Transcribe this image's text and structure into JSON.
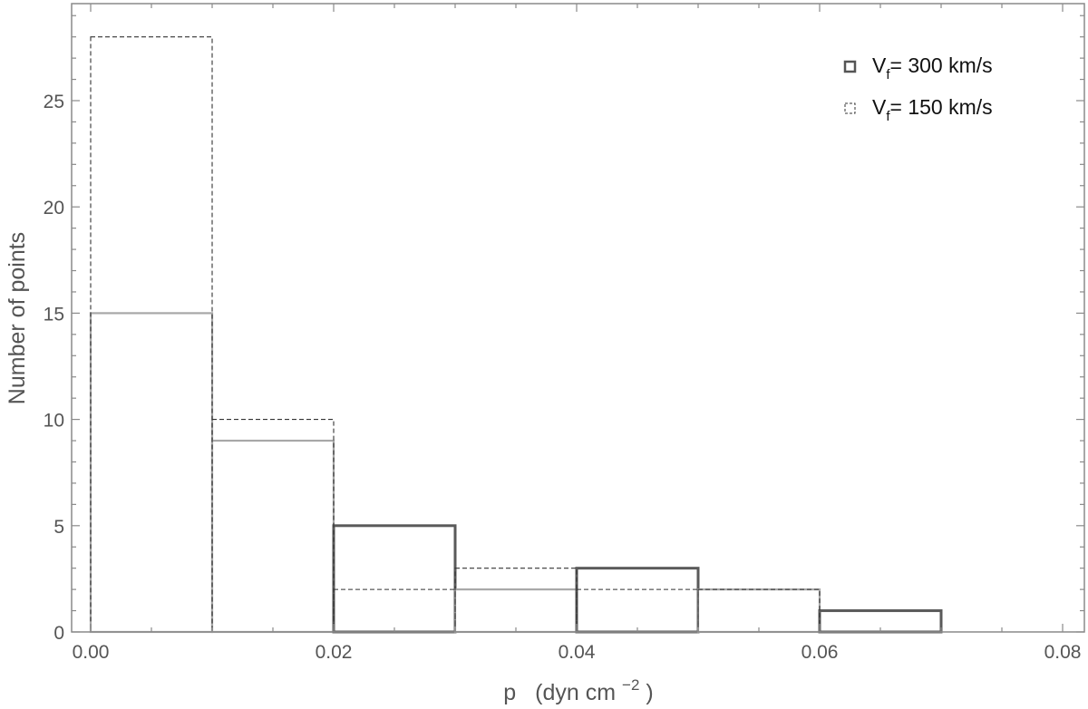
{
  "chart_data": {
    "type": "bar",
    "subtype": "histogram",
    "xlabel": {
      "main": "p",
      "unit_prefix": "(dyn cm",
      "unit_exp": "−2",
      "unit_suffix": ")"
    },
    "ylabel": "Number  of  points",
    "xlim": [
      0,
      0.08
    ],
    "ylim": [
      0,
      29
    ],
    "x_ticks": [
      "0.00",
      "0.02",
      "0.04",
      "0.06",
      "0.08"
    ],
    "y_ticks": [
      "0",
      "5",
      "10",
      "15",
      "20",
      "25"
    ],
    "bin_width": 0.01,
    "legend_position": "top-right",
    "grid": false,
    "series": [
      {
        "name": "V_f = 300 km/s",
        "legend": {
          "prefix": "V",
          "sub": "f",
          "suffix": "= 300 km/s"
        },
        "style": "solid",
        "color": "#555555",
        "bins": [
          {
            "x0": 0.0,
            "x1": 0.01,
            "count": 15
          },
          {
            "x0": 0.01,
            "x1": 0.02,
            "count": 9
          },
          {
            "x0": 0.02,
            "x1": 0.03,
            "count": 5
          },
          {
            "x0": 0.03,
            "x1": 0.04,
            "count": 2
          },
          {
            "x0": 0.04,
            "x1": 0.05,
            "count": 3
          },
          {
            "x0": 0.05,
            "x1": 0.06,
            "count": 2
          },
          {
            "x0": 0.06,
            "x1": 0.07,
            "count": 1
          }
        ]
      },
      {
        "name": "V_f = 150 km/s",
        "legend": {
          "prefix": "V",
          "sub": "f",
          "suffix": "= 150 km/s"
        },
        "style": "dashed",
        "color": "#333333",
        "bins": [
          {
            "x0": 0.0,
            "x1": 0.01,
            "count": 28
          },
          {
            "x0": 0.01,
            "x1": 0.02,
            "count": 10
          },
          {
            "x0": 0.02,
            "x1": 0.03,
            "count": 2
          },
          {
            "x0": 0.03,
            "x1": 0.04,
            "count": 3
          },
          {
            "x0": 0.04,
            "x1": 0.05,
            "count": 2
          },
          {
            "x0": 0.05,
            "x1": 0.06,
            "count": 2
          }
        ]
      }
    ]
  }
}
